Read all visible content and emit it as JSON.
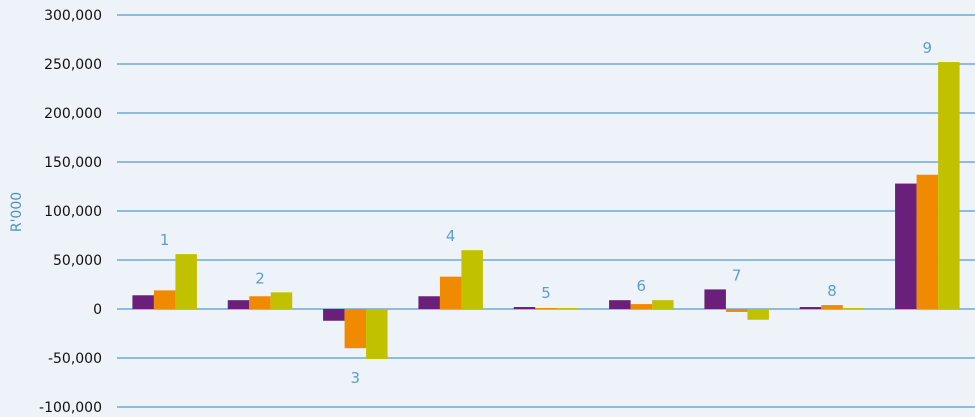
{
  "chart_data": {
    "type": "bar",
    "ylabel": "R'000",
    "ylim": [
      -100000,
      300000
    ],
    "y_ticks": [
      "300,000",
      "250,000",
      "200,000",
      "150,000",
      "100,000",
      "50,000",
      "0",
      "-50,000",
      "-100,000"
    ],
    "categories": [
      "1",
      "2",
      "3",
      "4",
      "5",
      "6",
      "7",
      "8",
      "9"
    ],
    "series": [
      {
        "values": [
          14000,
          9000,
          -12000,
          13000,
          2000,
          9000,
          20000,
          2000,
          128000
        ]
      },
      {
        "values": [
          19000,
          13000,
          -40000,
          33000,
          1000,
          5000,
          -3000,
          4000,
          137000
        ]
      },
      {
        "values": [
          56000,
          17000,
          -51000,
          60000,
          1000,
          9000,
          -11000,
          1000,
          252000
        ]
      }
    ],
    "grid": true
  },
  "colors": {
    "series": [
      "#6a1f7a",
      "#f08a00",
      "#c2c100"
    ],
    "grid": "#2f86c4",
    "background": "#eef3f9"
  }
}
